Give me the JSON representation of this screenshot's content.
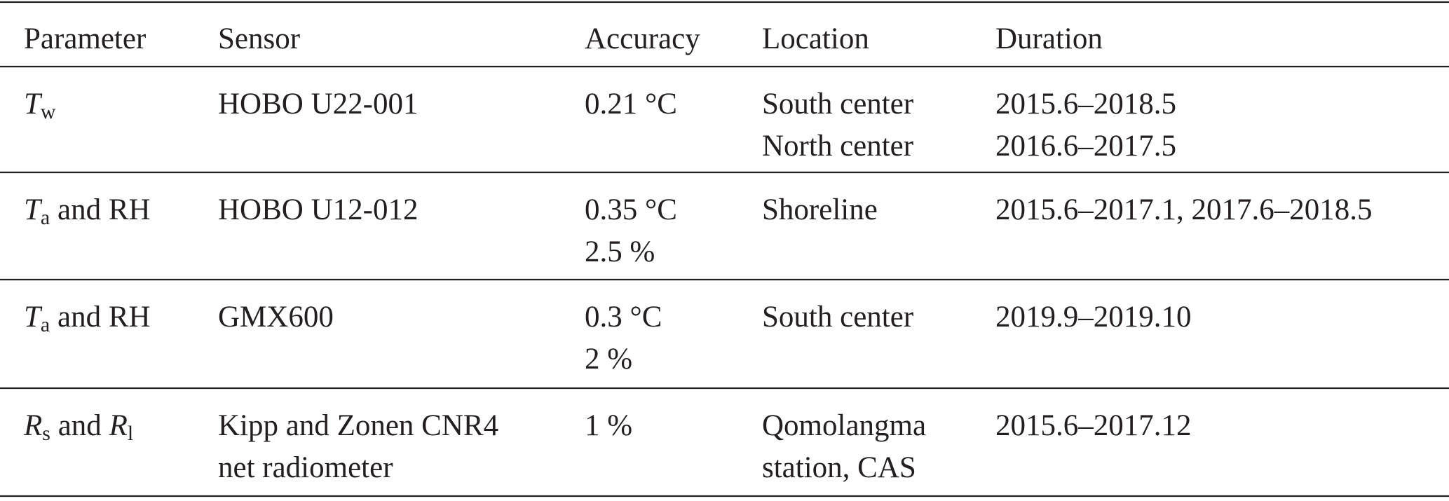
{
  "table": {
    "header": [
      "Parameter",
      "Sensor",
      "Accuracy",
      "Location",
      "Duration"
    ],
    "rows": [
      {
        "parameter": [
          {
            "text": "T",
            "style": "italic"
          },
          {
            "text": "w",
            "style": "subscript"
          }
        ],
        "sensor": [
          "HOBO U22-001"
        ],
        "accuracy": [
          "0.21 °C"
        ],
        "location": [
          "South center",
          "North center"
        ],
        "duration": [
          "2015.6–2018.5",
          "2016.6–2017.5"
        ]
      },
      {
        "parameter": [
          {
            "text": "T",
            "style": "italic"
          },
          {
            "text": "a",
            "style": "subscript"
          },
          {
            "text": " and RH",
            "style": "plain"
          }
        ],
        "sensor": [
          "HOBO U12-012"
        ],
        "accuracy": [
          "0.35 °C",
          "2.5 %"
        ],
        "location": [
          "Shoreline"
        ],
        "duration": [
          "2015.6–2017.1, 2017.6–2018.5"
        ]
      },
      {
        "parameter": [
          {
            "text": "T",
            "style": "italic"
          },
          {
            "text": "a",
            "style": "subscript"
          },
          {
            "text": " and RH",
            "style": "plain"
          }
        ],
        "sensor": [
          "GMX600"
        ],
        "accuracy": [
          "0.3 °C",
          "2 %"
        ],
        "location": [
          "South center"
        ],
        "duration": [
          "2019.9–2019.10"
        ]
      },
      {
        "parameter": [
          {
            "text": "R",
            "style": "italic"
          },
          {
            "text": "s",
            "style": "subscript"
          },
          {
            "text": " and ",
            "style": "plain"
          },
          {
            "text": "R",
            "style": "italic"
          },
          {
            "text": "l",
            "style": "subscript"
          }
        ],
        "sensor": [
          "Kipp and Zonen CNR4",
          "net radiometer"
        ],
        "accuracy": [
          "1 %"
        ],
        "location": [
          "Qomolangma",
          "station, CAS"
        ],
        "duration": [
          "2015.6–2017.12"
        ]
      }
    ]
  }
}
